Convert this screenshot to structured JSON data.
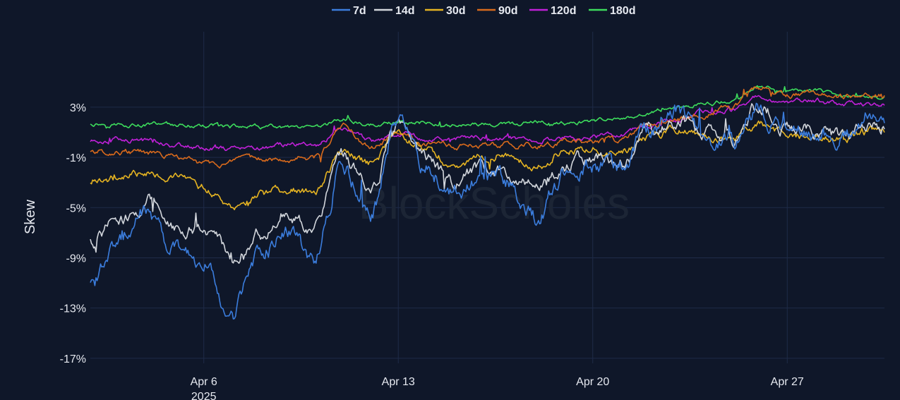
{
  "chart_data": {
    "type": "line",
    "title": "",
    "ylabel": "Skew",
    "xlabel": "",
    "x_range": [
      "2025-04-01T22:00",
      "2025-04-30T12:00"
    ],
    "ylim": [
      -17.4,
      7.6
    ],
    "y_ticks": [
      3,
      -1,
      -5,
      -9,
      -13,
      -17
    ],
    "y_tick_labels": [
      "3%",
      "-1%",
      "-5%",
      "-9%",
      "-13%",
      "-17%"
    ],
    "x_ticks": [
      "2025-04-06",
      "2025-04-13",
      "2025-04-20",
      "2025-04-27"
    ],
    "x_tick_labels": [
      "Apr 6",
      "Apr 13",
      "Apr 20",
      "Apr 27"
    ],
    "x_year_label": "2025",
    "grid": true,
    "legend_position": "top",
    "watermark": "BlockScholes",
    "colors": {
      "background": "#0f1729",
      "grid": "#1f2b48",
      "text": "#e6e9f0"
    },
    "series": [
      {
        "name": "7d",
        "color": "#3b7ddd",
        "x": [
          "2025-04-02",
          "2025-04-03",
          "2025-04-04",
          "2025-04-05",
          "2025-04-06",
          "2025-04-07",
          "2025-04-08",
          "2025-04-09",
          "2025-04-10",
          "2025-04-11",
          "2025-04-12",
          "2025-04-13",
          "2025-04-14",
          "2025-04-15",
          "2025-04-16",
          "2025-04-17",
          "2025-04-18",
          "2025-04-19",
          "2025-04-20",
          "2025-04-21",
          "2025-04-22",
          "2025-04-23",
          "2025-04-24",
          "2025-04-25",
          "2025-04-26",
          "2025-04-27",
          "2025-04-28",
          "2025-04-29",
          "2025-04-30"
        ],
        "values": [
          -11,
          -7.5,
          -5.2,
          -8.5,
          -9,
          -14,
          -8.5,
          -7,
          -9,
          -1.5,
          -5.5,
          2,
          -2,
          -3.5,
          -2.5,
          -3,
          -6,
          -2.5,
          -1.5,
          -2,
          1,
          3,
          0.5,
          0,
          2.5,
          1,
          0.5,
          0.5,
          2
        ]
      },
      {
        "name": "14d",
        "color": "#d2d6dc",
        "x": [
          "2025-04-02",
          "2025-04-03",
          "2025-04-04",
          "2025-04-05",
          "2025-04-06",
          "2025-04-07",
          "2025-04-08",
          "2025-04-09",
          "2025-04-10",
          "2025-04-11",
          "2025-04-12",
          "2025-04-13",
          "2025-04-14",
          "2025-04-15",
          "2025-04-16",
          "2025-04-17",
          "2025-04-18",
          "2025-04-19",
          "2025-04-20",
          "2025-04-21",
          "2025-04-22",
          "2025-04-23",
          "2025-04-24",
          "2025-04-25",
          "2025-04-26",
          "2025-04-27",
          "2025-04-28",
          "2025-04-29",
          "2025-04-30"
        ],
        "values": [
          -7.5,
          -6,
          -4.5,
          -6.5,
          -6.5,
          -9,
          -7,
          -5,
          -6.5,
          -1.2,
          -3.5,
          1.5,
          -1.2,
          -3,
          -2,
          -2.5,
          -3.5,
          -1.5,
          -1,
          -1.5,
          1,
          2,
          1,
          0.5,
          3,
          1.5,
          1,
          0.5,
          1.5
        ]
      },
      {
        "name": "30d",
        "color": "#e6b422",
        "x": [
          "2025-04-02",
          "2025-04-03",
          "2025-04-04",
          "2025-04-05",
          "2025-04-06",
          "2025-04-07",
          "2025-04-08",
          "2025-04-09",
          "2025-04-10",
          "2025-04-11",
          "2025-04-12",
          "2025-04-13",
          "2025-04-14",
          "2025-04-15",
          "2025-04-16",
          "2025-04-17",
          "2025-04-18",
          "2025-04-19",
          "2025-04-20",
          "2025-04-21",
          "2025-04-22",
          "2025-04-23",
          "2025-04-24",
          "2025-04-25",
          "2025-04-26",
          "2025-04-27",
          "2025-04-28",
          "2025-04-29",
          "2025-04-30"
        ],
        "values": [
          -3,
          -2.6,
          -2,
          -2.5,
          -3.5,
          -5,
          -4,
          -3.5,
          -3.8,
          -0.5,
          -1.5,
          1,
          -0.5,
          -1.5,
          -1,
          -0.8,
          -1.5,
          -0.5,
          -0.2,
          -0.3,
          0.5,
          1.2,
          0.5,
          0.5,
          1.5,
          0.8,
          0.5,
          0.5,
          1
        ]
      },
      {
        "name": "90d",
        "color": "#d96a1c",
        "x": [
          "2025-04-02",
          "2025-04-03",
          "2025-04-04",
          "2025-04-05",
          "2025-04-06",
          "2025-04-07",
          "2025-04-08",
          "2025-04-09",
          "2025-04-10",
          "2025-04-11",
          "2025-04-12",
          "2025-04-13",
          "2025-04-14",
          "2025-04-15",
          "2025-04-16",
          "2025-04-17",
          "2025-04-18",
          "2025-04-19",
          "2025-04-20",
          "2025-04-21",
          "2025-04-22",
          "2025-04-23",
          "2025-04-24",
          "2025-04-25",
          "2025-04-26",
          "2025-04-27",
          "2025-04-28",
          "2025-04-29",
          "2025-04-30"
        ],
        "values": [
          -0.5,
          -0.5,
          -0.7,
          -1,
          -1.5,
          -1.5,
          -1.2,
          -1,
          -1,
          1.5,
          -0.2,
          0.8,
          0,
          -0.2,
          0,
          0,
          0,
          0.3,
          0.2,
          0.3,
          1.5,
          2,
          2.5,
          3,
          4.5,
          4,
          4,
          4,
          4
        ]
      },
      {
        "name": "120d",
        "color": "#c020d8",
        "x": [
          "2025-04-02",
          "2025-04-03",
          "2025-04-04",
          "2025-04-05",
          "2025-04-06",
          "2025-04-07",
          "2025-04-08",
          "2025-04-09",
          "2025-04-10",
          "2025-04-11",
          "2025-04-12",
          "2025-04-13",
          "2025-04-14",
          "2025-04-15",
          "2025-04-16",
          "2025-04-17",
          "2025-04-18",
          "2025-04-19",
          "2025-04-20",
          "2025-04-21",
          "2025-04-22",
          "2025-04-23",
          "2025-04-24",
          "2025-04-25",
          "2025-04-26",
          "2025-04-27",
          "2025-04-28",
          "2025-04-29",
          "2025-04-30"
        ],
        "values": [
          0.3,
          0.4,
          0.3,
          0,
          -0.2,
          -0.3,
          -0.2,
          0,
          0,
          1.3,
          0.3,
          1,
          0.5,
          0.5,
          0.6,
          0.5,
          0.5,
          0.6,
          0.7,
          0.8,
          1.5,
          2,
          2.5,
          2.8,
          3.8,
          3.5,
          3.5,
          3.2,
          3.2
        ]
      },
      {
        "name": "180d",
        "color": "#3ddc5c",
        "x": [
          "2025-04-02",
          "2025-04-03",
          "2025-04-04",
          "2025-04-05",
          "2025-04-06",
          "2025-04-07",
          "2025-04-08",
          "2025-04-09",
          "2025-04-10",
          "2025-04-11",
          "2025-04-12",
          "2025-04-13",
          "2025-04-14",
          "2025-04-15",
          "2025-04-16",
          "2025-04-17",
          "2025-04-18",
          "2025-04-19",
          "2025-04-20",
          "2025-04-21",
          "2025-04-22",
          "2025-04-23",
          "2025-04-24",
          "2025-04-25",
          "2025-04-26",
          "2025-04-27",
          "2025-04-28",
          "2025-04-29",
          "2025-04-30"
        ],
        "values": [
          1.7,
          1.7,
          1.6,
          1.6,
          1.5,
          1.4,
          1.4,
          1.3,
          1.2,
          2,
          1.6,
          1.8,
          1.8,
          1.6,
          1.6,
          1.6,
          1.7,
          1.7,
          1.8,
          2,
          2.6,
          3,
          3.2,
          3.5,
          4.5,
          4.2,
          4.2,
          3.8,
          3.8
        ]
      }
    ]
  }
}
